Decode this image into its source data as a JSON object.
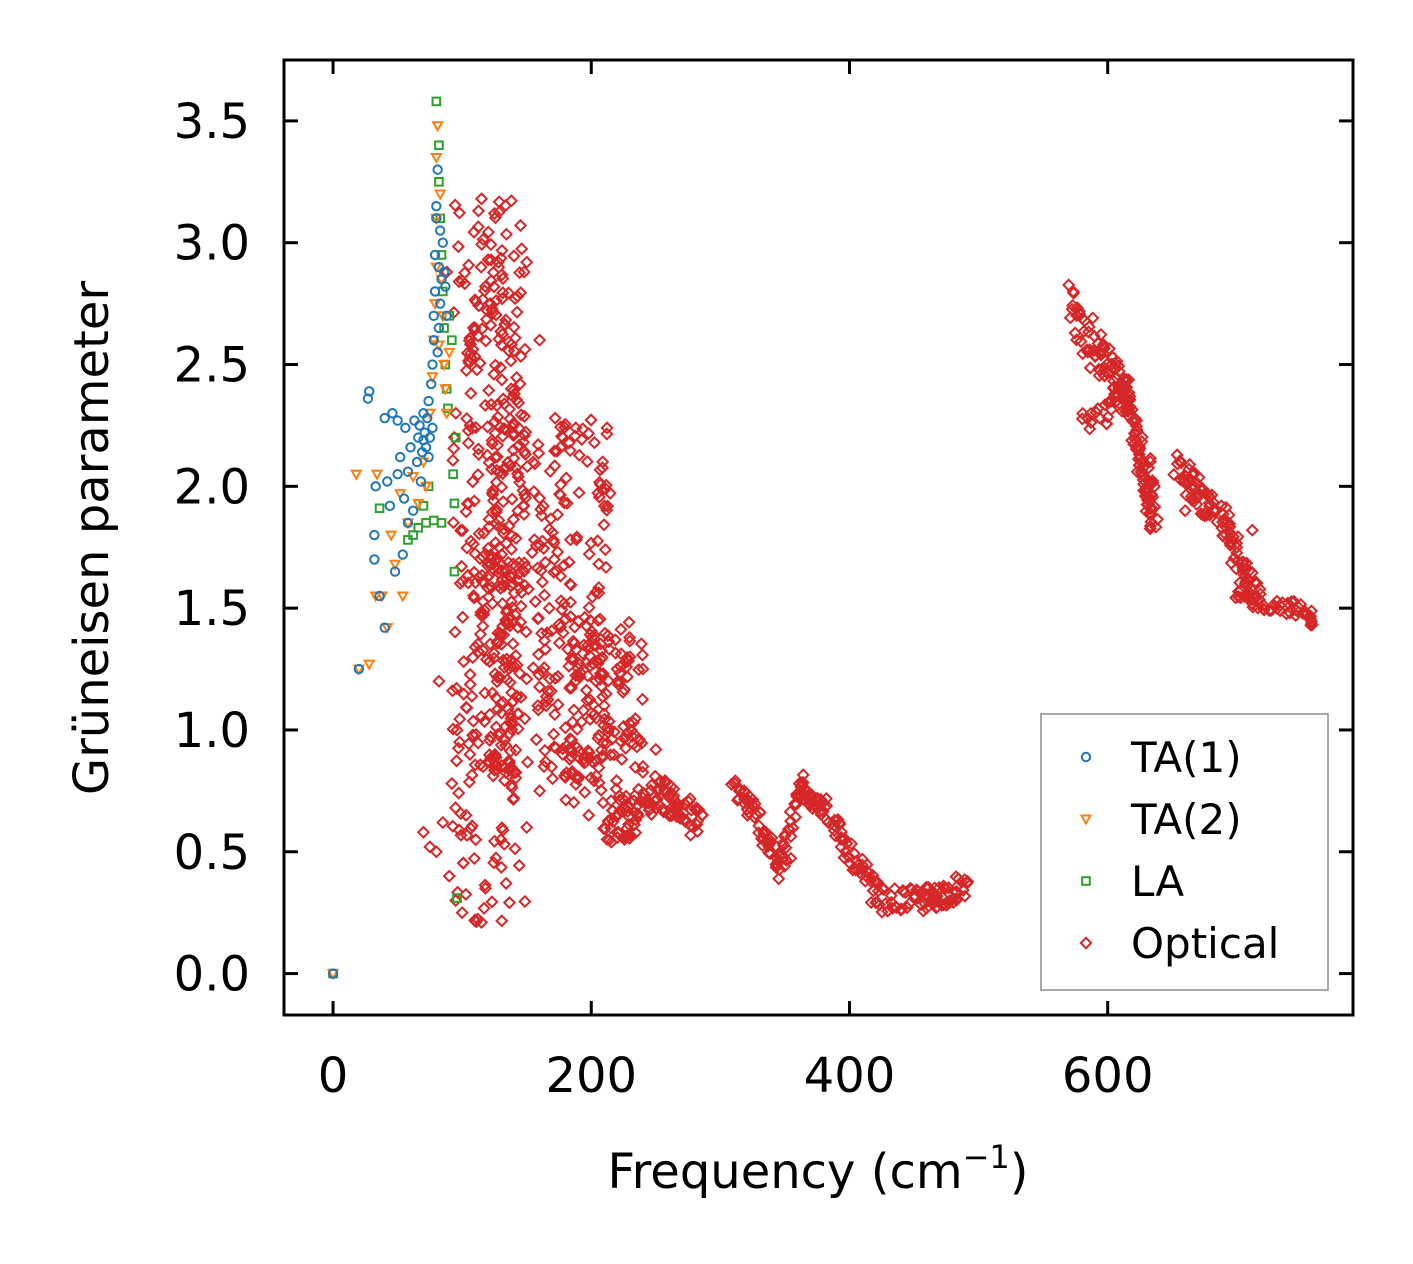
{
  "chart_data": {
    "type": "scatter",
    "xlabel": "Frequency (cm",
    "xlabel_sup": "−1",
    "xlabel_close": ")",
    "ylabel": "Grüneisen parameter",
    "xlim": [
      -38,
      790
    ],
    "ylim": [
      -0.17,
      3.75
    ],
    "xticks": [
      0,
      200,
      400,
      600
    ],
    "xtick_labels": [
      "0",
      "200",
      "400",
      "600"
    ],
    "yticks": [
      0.0,
      0.5,
      1.0,
      1.5,
      2.0,
      2.5,
      3.0,
      3.5
    ],
    "ytick_labels": [
      "0.0",
      "0.5",
      "1.0",
      "1.5",
      "2.0",
      "2.5",
      "3.0",
      "3.5"
    ],
    "legend_position": "lower-right",
    "series": [
      {
        "name": "TA(1)",
        "marker": "circle",
        "color": "#1f77b4",
        "points": [
          [
            0,
            0.0
          ],
          [
            20,
            1.25
          ],
          [
            27,
            2.36
          ],
          [
            28,
            2.39
          ],
          [
            32,
            1.7
          ],
          [
            32,
            1.8
          ],
          [
            33,
            2.0
          ],
          [
            36,
            1.55
          ],
          [
            40,
            1.42
          ],
          [
            40,
            2.28
          ],
          [
            42,
            2.02
          ],
          [
            44,
            1.92
          ],
          [
            46,
            2.3
          ],
          [
            48,
            1.65
          ],
          [
            50,
            2.27
          ],
          [
            50,
            2.05
          ],
          [
            52,
            2.12
          ],
          [
            54,
            1.72
          ],
          [
            55,
            1.95
          ],
          [
            56,
            2.24
          ],
          [
            58,
            1.85
          ],
          [
            58,
            2.06
          ],
          [
            60,
            2.16
          ],
          [
            62,
            1.9
          ],
          [
            63,
            2.27
          ],
          [
            65,
            2.1
          ],
          [
            66,
            2.2
          ],
          [
            67,
            2.25
          ],
          [
            68,
            2.02
          ],
          [
            69,
            2.14
          ],
          [
            70,
            2.19
          ],
          [
            70,
            2.3
          ],
          [
            71,
            2.22
          ],
          [
            72,
            2.16
          ],
          [
            73,
            2.28
          ],
          [
            74,
            2.12
          ],
          [
            74,
            2.35
          ],
          [
            75,
            2.2
          ],
          [
            76,
            2.42
          ],
          [
            77,
            2.24
          ],
          [
            77,
            2.5
          ],
          [
            78,
            2.6
          ],
          [
            78,
            2.7
          ],
          [
            79,
            2.8
          ],
          [
            79,
            2.95
          ],
          [
            80,
            3.1
          ],
          [
            80,
            3.15
          ],
          [
            81,
            2.55
          ],
          [
            81,
            3.3
          ],
          [
            82,
            2.65
          ],
          [
            82,
            2.9
          ],
          [
            83,
            2.75
          ],
          [
            83,
            3.05
          ],
          [
            84,
            2.85
          ],
          [
            85,
            3.0
          ],
          [
            86,
            2.88
          ],
          [
            87,
            2.82
          ],
          [
            88,
            2.7
          ]
        ]
      },
      {
        "name": "TA(2)",
        "marker": "triangle-down",
        "color": "#ff7f0e",
        "points": [
          [
            0,
            0.0
          ],
          [
            18,
            2.05
          ],
          [
            20,
            1.25
          ],
          [
            28,
            1.27
          ],
          [
            33,
            1.55
          ],
          [
            34,
            2.05
          ],
          [
            38,
            1.55
          ],
          [
            42,
            1.42
          ],
          [
            45,
            1.8
          ],
          [
            48,
            1.68
          ],
          [
            52,
            1.97
          ],
          [
            54,
            1.55
          ],
          [
            58,
            1.85
          ],
          [
            62,
            2.04
          ],
          [
            66,
            1.93
          ],
          [
            70,
            2.1
          ],
          [
            72,
            2.0
          ],
          [
            75,
            2.3
          ],
          [
            77,
            2.45
          ],
          [
            78,
            2.6
          ],
          [
            79,
            2.75
          ],
          [
            80,
            2.9
          ],
          [
            80,
            3.1
          ],
          [
            80,
            3.35
          ],
          [
            81,
            3.48
          ],
          [
            82,
            2.58
          ],
          [
            83,
            3.2
          ],
          [
            84,
            2.85
          ],
          [
            85,
            2.7
          ],
          [
            86,
            2.5
          ],
          [
            87,
            2.4
          ],
          [
            88,
            2.3
          ],
          [
            90,
            2.55
          ]
        ]
      },
      {
        "name": "LA",
        "marker": "square",
        "color": "#2ca02c",
        "points": [
          [
            0,
            0.0
          ],
          [
            36,
            1.91
          ],
          [
            58,
            1.78
          ],
          [
            62,
            1.8
          ],
          [
            66,
            1.83
          ],
          [
            70,
            1.92
          ],
          [
            72,
            1.85
          ],
          [
            74,
            2.0
          ],
          [
            78,
            1.86
          ],
          [
            80,
            3.58
          ],
          [
            82,
            3.4
          ],
          [
            82,
            3.25
          ],
          [
            83,
            3.1
          ],
          [
            84,
            2.95
          ],
          [
            84,
            1.85
          ],
          [
            85,
            2.8
          ],
          [
            86,
            2.65
          ],
          [
            87,
            2.5
          ],
          [
            88,
            2.4
          ],
          [
            89,
            2.32
          ],
          [
            90,
            2.7
          ],
          [
            92,
            2.6
          ],
          [
            93,
            2.05
          ],
          [
            94,
            1.93
          ],
          [
            94,
            1.65
          ],
          [
            95,
            2.2
          ],
          [
            96,
            0.31
          ]
        ]
      },
      {
        "name": "Optical",
        "marker": "diamond",
        "color": "#d62728",
        "bands": [
          {
            "x0": 92,
            "x1": 150,
            "y0": 0.2,
            "y1": 3.18,
            "n": 220
          },
          {
            "x0": 100,
            "x1": 145,
            "y0": 0.8,
            "y1": 2.95,
            "n": 140
          },
          {
            "x0": 120,
            "x1": 215,
            "y0": 0.8,
            "y1": 2.3,
            "n": 320
          },
          {
            "x0": 180,
            "x1": 240,
            "y0": 0.7,
            "y1": 1.45,
            "n": 120
          }
        ],
        "paths": [
          {
            "pts": [
              [
                210,
                0.6
              ],
              [
                230,
                0.62
              ],
              [
                250,
                0.75
              ],
              [
                265,
                0.7
              ],
              [
                285,
                0.6
              ]
            ],
            "n": 110,
            "jitter": [
              3,
              0.07
            ]
          },
          {
            "pts": [
              [
                310,
                0.78
              ],
              [
                330,
                0.62
              ],
              [
                348,
                0.42
              ],
              [
                362,
                0.78
              ],
              [
                380,
                0.68
              ],
              [
                405,
                0.45
              ],
              [
                425,
                0.3
              ],
              [
                455,
                0.3
              ],
              [
                470,
                0.32
              ],
              [
                490,
                0.36
              ]
            ],
            "n": 240,
            "jitter": [
              3,
              0.05
            ]
          },
          {
            "pts": [
              [
                570,
                2.75
              ],
              [
                590,
                2.55
              ],
              [
                605,
                2.45
              ],
              [
                615,
                2.35
              ],
              [
                630,
                2.05
              ],
              [
                635,
                1.85
              ]
            ],
            "n": 130,
            "jitter": [
              4,
              0.09
            ]
          },
          {
            "pts": [
              [
                580,
                2.25
              ],
              [
                600,
                2.3
              ],
              [
                610,
                2.4
              ],
              [
                620,
                2.25
              ],
              [
                625,
                2.05
              ],
              [
                635,
                1.9
              ]
            ],
            "n": 60,
            "jitter": [
              3,
              0.05
            ]
          },
          {
            "pts": [
              [
                655,
                2.08
              ],
              [
                670,
                1.95
              ],
              [
                690,
                1.85
              ],
              [
                705,
                1.68
              ],
              [
                715,
                1.52
              ]
            ],
            "n": 110,
            "jitter": [
              4,
              0.07
            ]
          },
          {
            "pts": [
              [
                700,
                1.55
              ],
              [
                720,
                1.52
              ],
              [
                745,
                1.5
              ],
              [
                760,
                1.45
              ]
            ],
            "n": 50,
            "jitter": [
              3,
              0.03
            ]
          }
        ],
        "points": [
          [
            82,
            1.2
          ],
          [
            90,
            0.4
          ],
          [
            95,
            0.3
          ],
          [
            100,
            0.25
          ],
          [
            103,
            0.65
          ],
          [
            106,
            0.9
          ],
          [
            110,
            0.22
          ],
          [
            115,
            0.21
          ],
          [
            118,
            0.35
          ],
          [
            130,
            0.55
          ],
          [
            140,
            0.72
          ],
          [
            150,
            0.6
          ],
          [
            160,
            0.75
          ],
          [
            170,
            0.8
          ],
          [
            185,
            0.82
          ],
          [
            198,
            0.65
          ],
          [
            210,
            1.1
          ],
          [
            220,
            1.25
          ],
          [
            230,
            1.3
          ],
          [
            240,
            1.25
          ],
          [
            250,
            0.92
          ],
          [
            258,
            0.75
          ],
          [
            240,
            0.85
          ],
          [
            172,
            2.28
          ],
          [
            178,
            2.2
          ],
          [
            188,
            2.24
          ],
          [
            150,
            2.92
          ],
          [
            148,
            2.88
          ],
          [
            143,
            2.78
          ],
          [
            160,
            2.6
          ],
          [
            128,
            2.92
          ],
          [
            125,
            3.12
          ],
          [
            115,
            3.18
          ],
          [
            118,
            2.82
          ],
          [
            122,
            2.75
          ],
          [
            138,
            2.4
          ],
          [
            155,
            2.1
          ],
          [
            88,
            2.88
          ],
          [
            70,
            0.58
          ],
          [
            75,
            0.52
          ],
          [
            80,
            0.5
          ],
          [
            85,
            0.62
          ],
          [
            92,
            0.78
          ],
          [
            96,
            1.0
          ],
          [
            98,
            0.95
          ],
          [
            712,
            1.82
          ],
          [
            700,
            1.75
          ],
          [
            660,
            1.9
          ],
          [
            665,
            2.0
          ]
        ]
      }
    ]
  }
}
